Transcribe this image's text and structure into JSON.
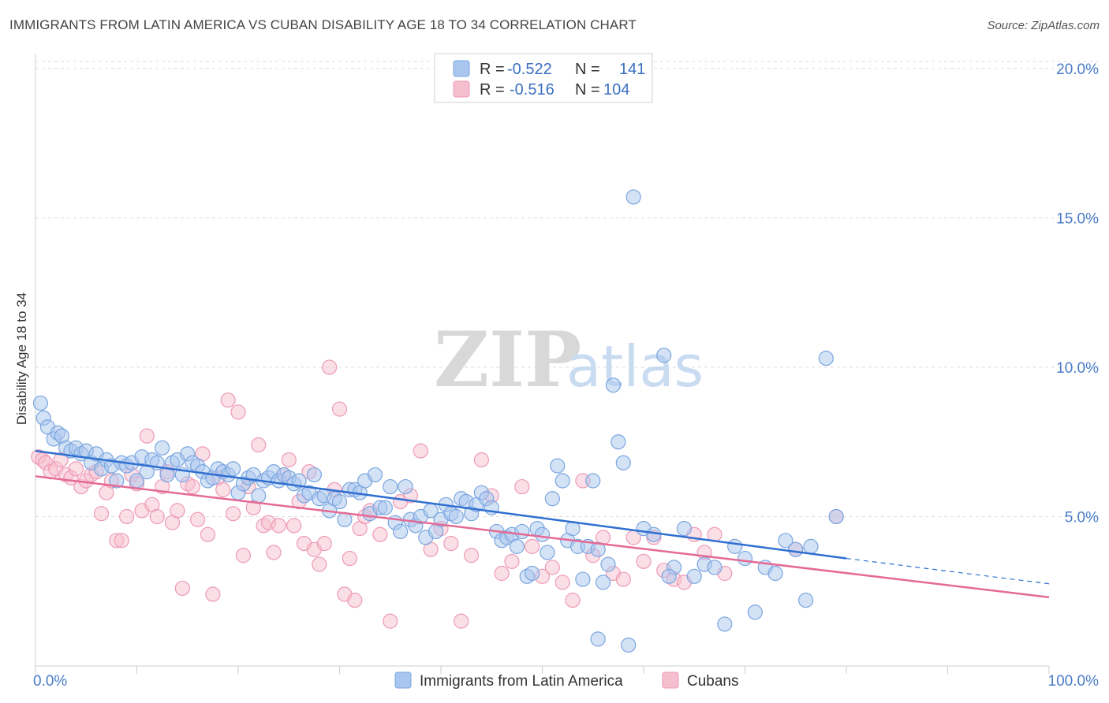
{
  "title": "IMMIGRANTS FROM LATIN AMERICA VS CUBAN DISABILITY AGE 18 TO 34 CORRELATION CHART",
  "source": "Source: ZipAtlas.com",
  "watermark": {
    "zip": "ZIP",
    "atlas": "atlas"
  },
  "colors": {
    "blue_fill": "#a9c6ee",
    "blue_stroke": "#7aa6e0",
    "blue_line": "#2f6fd0",
    "pink_fill": "#f6bfd0",
    "pink_stroke": "#ee9ab5",
    "pink_line": "#e46a95",
    "grid": "#dddddd",
    "tick_text": "#4a7cc9"
  },
  "legend": {
    "rows": [
      {
        "r_label": "R =",
        "r_value": "-0.522",
        "n_label": "N =",
        "n_value": "141"
      },
      {
        "r_label": "R =",
        "r_value": "-0.516",
        "n_label": "N =",
        "n_value": "104"
      }
    ]
  },
  "chart_data": {
    "type": "scatter",
    "title": "IMMIGRANTS FROM LATIN AMERICA VS CUBAN DISABILITY AGE 18 TO 34 CORRELATION CHART",
    "xlabel": "",
    "ylabel": "Disability Age 18 to 34",
    "xlim": [
      0,
      100
    ],
    "ylim": [
      0,
      20.5
    ],
    "x_tick_labels": [
      "0.0%",
      "100.0%"
    ],
    "y_ticks": [
      5,
      10,
      15,
      20
    ],
    "y_tick_labels": [
      "5.0%",
      "10.0%",
      "15.0%",
      "20.0%"
    ],
    "grid": true,
    "legend_position": "top-center",
    "series": [
      {
        "name": "Immigrants from Latin America",
        "r": -0.522,
        "n": 141,
        "trend": {
          "x0": 0,
          "y0": 7.2,
          "x1": 80,
          "y1": 3.6,
          "dash_to_x": 100,
          "dash_to_y": 2.75
        },
        "points": [
          [
            0.5,
            8.8
          ],
          [
            0.8,
            8.3
          ],
          [
            1.2,
            8.0
          ],
          [
            1.8,
            7.6
          ],
          [
            2.2,
            7.8
          ],
          [
            2.6,
            7.7
          ],
          [
            3.0,
            7.3
          ],
          [
            3.5,
            7.2
          ],
          [
            4.0,
            7.3
          ],
          [
            4.5,
            7.1
          ],
          [
            5.0,
            7.2
          ],
          [
            5.5,
            6.8
          ],
          [
            6.0,
            7.1
          ],
          [
            6.5,
            6.6
          ],
          [
            7.0,
            6.9
          ],
          [
            7.5,
            6.7
          ],
          [
            8.0,
            6.2
          ],
          [
            8.5,
            6.8
          ],
          [
            9.0,
            6.7
          ],
          [
            9.5,
            6.8
          ],
          [
            10.0,
            6.2
          ],
          [
            10.5,
            7.0
          ],
          [
            11.0,
            6.5
          ],
          [
            11.5,
            6.9
          ],
          [
            12.0,
            6.8
          ],
          [
            12.5,
            7.3
          ],
          [
            13.0,
            6.4
          ],
          [
            13.5,
            6.8
          ],
          [
            14.0,
            6.9
          ],
          [
            14.5,
            6.4
          ],
          [
            15.0,
            7.1
          ],
          [
            15.5,
            6.8
          ],
          [
            16.0,
            6.7
          ],
          [
            16.5,
            6.5
          ],
          [
            17.0,
            6.2
          ],
          [
            17.5,
            6.3
          ],
          [
            18.0,
            6.6
          ],
          [
            18.5,
            6.5
          ],
          [
            19.0,
            6.4
          ],
          [
            19.5,
            6.6
          ],
          [
            20.0,
            5.8
          ],
          [
            20.5,
            6.1
          ],
          [
            21.0,
            6.3
          ],
          [
            21.5,
            6.4
          ],
          [
            22.0,
            5.7
          ],
          [
            22.5,
            6.2
          ],
          [
            23.0,
            6.3
          ],
          [
            23.5,
            6.5
          ],
          [
            24.0,
            6.2
          ],
          [
            24.5,
            6.4
          ],
          [
            25.0,
            6.3
          ],
          [
            25.5,
            6.1
          ],
          [
            26.0,
            6.2
          ],
          [
            26.5,
            5.7
          ],
          [
            27.0,
            5.8
          ],
          [
            27.5,
            6.4
          ],
          [
            28.0,
            5.6
          ],
          [
            28.5,
            5.7
          ],
          [
            29.0,
            5.2
          ],
          [
            29.5,
            5.6
          ],
          [
            30.0,
            5.5
          ],
          [
            30.5,
            4.9
          ],
          [
            31.0,
            5.9
          ],
          [
            31.5,
            5.9
          ],
          [
            32.0,
            5.8
          ],
          [
            32.5,
            6.2
          ],
          [
            33.0,
            5.1
          ],
          [
            33.5,
            6.4
          ],
          [
            34.0,
            5.3
          ],
          [
            34.5,
            5.3
          ],
          [
            35.0,
            6.0
          ],
          [
            35.5,
            4.8
          ],
          [
            36.0,
            4.5
          ],
          [
            36.5,
            6.0
          ],
          [
            37.0,
            4.9
          ],
          [
            37.5,
            4.7
          ],
          [
            38.0,
            5.0
          ],
          [
            38.5,
            4.3
          ],
          [
            39.0,
            5.2
          ],
          [
            39.5,
            4.5
          ],
          [
            40.0,
            4.9
          ],
          [
            40.5,
            5.4
          ],
          [
            41.0,
            5.1
          ],
          [
            41.5,
            5.0
          ],
          [
            42.0,
            5.6
          ],
          [
            42.5,
            5.5
          ],
          [
            43.0,
            5.1
          ],
          [
            43.5,
            5.4
          ],
          [
            44.0,
            5.8
          ],
          [
            44.5,
            5.6
          ],
          [
            45.0,
            5.3
          ],
          [
            45.5,
            4.5
          ],
          [
            46.0,
            4.2
          ],
          [
            46.5,
            4.3
          ],
          [
            47.0,
            4.4
          ],
          [
            47.5,
            4.0
          ],
          [
            48.0,
            4.5
          ],
          [
            48.5,
            3.0
          ],
          [
            49.0,
            3.1
          ],
          [
            49.5,
            4.6
          ],
          [
            50.0,
            4.4
          ],
          [
            50.5,
            3.8
          ],
          [
            51.0,
            5.6
          ],
          [
            51.5,
            6.7
          ],
          [
            52.0,
            6.2
          ],
          [
            52.5,
            4.2
          ],
          [
            53.0,
            4.6
          ],
          [
            53.5,
            4.0
          ],
          [
            54.0,
            2.9
          ],
          [
            54.5,
            4.0
          ],
          [
            55.0,
            6.2
          ],
          [
            55.5,
            3.9
          ],
          [
            56.0,
            2.8
          ],
          [
            56.5,
            3.4
          ],
          [
            57.0,
            9.4
          ],
          [
            57.5,
            7.5
          ],
          [
            58.0,
            6.8
          ],
          [
            59.0,
            15.7
          ],
          [
            60.0,
            4.6
          ],
          [
            61.0,
            4.4
          ],
          [
            62.0,
            10.4
          ],
          [
            63.0,
            3.3
          ],
          [
            64.0,
            4.6
          ],
          [
            65.0,
            3.0
          ],
          [
            66.0,
            3.4
          ],
          [
            67.0,
            3.3
          ],
          [
            68.0,
            1.4
          ],
          [
            69.0,
            4.0
          ],
          [
            70.0,
            3.6
          ],
          [
            71.0,
            1.8
          ],
          [
            72.0,
            3.3
          ],
          [
            73.0,
            3.1
          ],
          [
            74.0,
            4.2
          ],
          [
            75.0,
            3.9
          ],
          [
            76.0,
            2.2
          ],
          [
            76.5,
            4.0
          ],
          [
            78.0,
            10.3
          ],
          [
            79.0,
            5.0
          ],
          [
            55.5,
            0.9
          ],
          [
            58.5,
            0.7
          ],
          [
            62.5,
            3.0
          ]
        ]
      },
      {
        "name": "Cubans",
        "r": -0.516,
        "n": 104,
        "trend": {
          "x0": 0,
          "y0": 6.35,
          "x1": 100,
          "y1": 2.3
        },
        "points": [
          [
            0.3,
            7.0
          ],
          [
            0.7,
            6.9
          ],
          [
            1.0,
            6.8
          ],
          [
            1.5,
            6.5
          ],
          [
            2.0,
            6.6
          ],
          [
            2.5,
            6.9
          ],
          [
            3.0,
            6.4
          ],
          [
            3.5,
            6.3
          ],
          [
            4.0,
            6.6
          ],
          [
            4.5,
            6.0
          ],
          [
            5.0,
            6.2
          ],
          [
            5.5,
            6.4
          ],
          [
            6.0,
            6.5
          ],
          [
            6.5,
            5.1
          ],
          [
            7.0,
            5.8
          ],
          [
            7.5,
            6.2
          ],
          [
            8.0,
            4.2
          ],
          [
            8.5,
            4.2
          ],
          [
            9.0,
            5.0
          ],
          [
            9.5,
            6.4
          ],
          [
            10.0,
            6.1
          ],
          [
            10.5,
            5.2
          ],
          [
            11.0,
            7.7
          ],
          [
            11.5,
            5.4
          ],
          [
            12.0,
            5.0
          ],
          [
            12.5,
            6.0
          ],
          [
            13.0,
            6.5
          ],
          [
            13.5,
            4.8
          ],
          [
            14.0,
            5.2
          ],
          [
            14.5,
            2.6
          ],
          [
            15.0,
            6.1
          ],
          [
            15.5,
            6.0
          ],
          [
            16.0,
            4.9
          ],
          [
            16.5,
            7.1
          ],
          [
            17.0,
            4.4
          ],
          [
            17.5,
            2.4
          ],
          [
            18.0,
            6.3
          ],
          [
            18.5,
            5.9
          ],
          [
            19.0,
            8.9
          ],
          [
            19.5,
            5.1
          ],
          [
            20.0,
            8.5
          ],
          [
            20.5,
            3.7
          ],
          [
            21.0,
            6.0
          ],
          [
            21.5,
            5.3
          ],
          [
            22.0,
            7.4
          ],
          [
            22.5,
            4.7
          ],
          [
            23.0,
            4.8
          ],
          [
            23.5,
            3.8
          ],
          [
            24.0,
            4.7
          ],
          [
            24.5,
            6.4
          ],
          [
            25.0,
            6.9
          ],
          [
            25.5,
            4.7
          ],
          [
            26.0,
            5.5
          ],
          [
            26.5,
            4.1
          ],
          [
            27.0,
            6.5
          ],
          [
            27.5,
            3.9
          ],
          [
            28.0,
            3.4
          ],
          [
            28.5,
            4.1
          ],
          [
            29.0,
            10.0
          ],
          [
            29.5,
            5.9
          ],
          [
            30.0,
            8.6
          ],
          [
            30.5,
            2.4
          ],
          [
            31.0,
            3.6
          ],
          [
            31.5,
            2.2
          ],
          [
            32.0,
            4.6
          ],
          [
            32.5,
            5.0
          ],
          [
            33.0,
            5.2
          ],
          [
            34.0,
            4.4
          ],
          [
            35.0,
            1.5
          ],
          [
            36.0,
            5.5
          ],
          [
            37.0,
            5.7
          ],
          [
            38.0,
            7.2
          ],
          [
            39.0,
            3.9
          ],
          [
            40.0,
            4.6
          ],
          [
            41.0,
            4.1
          ],
          [
            42.0,
            1.5
          ],
          [
            43.0,
            3.7
          ],
          [
            44.0,
            6.9
          ],
          [
            45.0,
            5.7
          ],
          [
            46.0,
            3.1
          ],
          [
            47.0,
            3.5
          ],
          [
            48.0,
            6.0
          ],
          [
            49.0,
            4.0
          ],
          [
            50.0,
            3.0
          ],
          [
            51.0,
            3.3
          ],
          [
            52.0,
            2.8
          ],
          [
            53.0,
            2.2
          ],
          [
            54.0,
            6.2
          ],
          [
            55.0,
            3.7
          ],
          [
            56.0,
            4.3
          ],
          [
            57.0,
            3.1
          ],
          [
            58.0,
            2.9
          ],
          [
            59.0,
            4.3
          ],
          [
            60.0,
            3.5
          ],
          [
            61.0,
            4.3
          ],
          [
            62.0,
            3.2
          ],
          [
            63.0,
            2.9
          ],
          [
            64.0,
            2.8
          ],
          [
            65.0,
            4.4
          ],
          [
            66.0,
            3.8
          ],
          [
            67.0,
            4.4
          ],
          [
            68.0,
            3.1
          ],
          [
            75.0,
            3.9
          ],
          [
            79.0,
            5.0
          ]
        ]
      }
    ]
  }
}
